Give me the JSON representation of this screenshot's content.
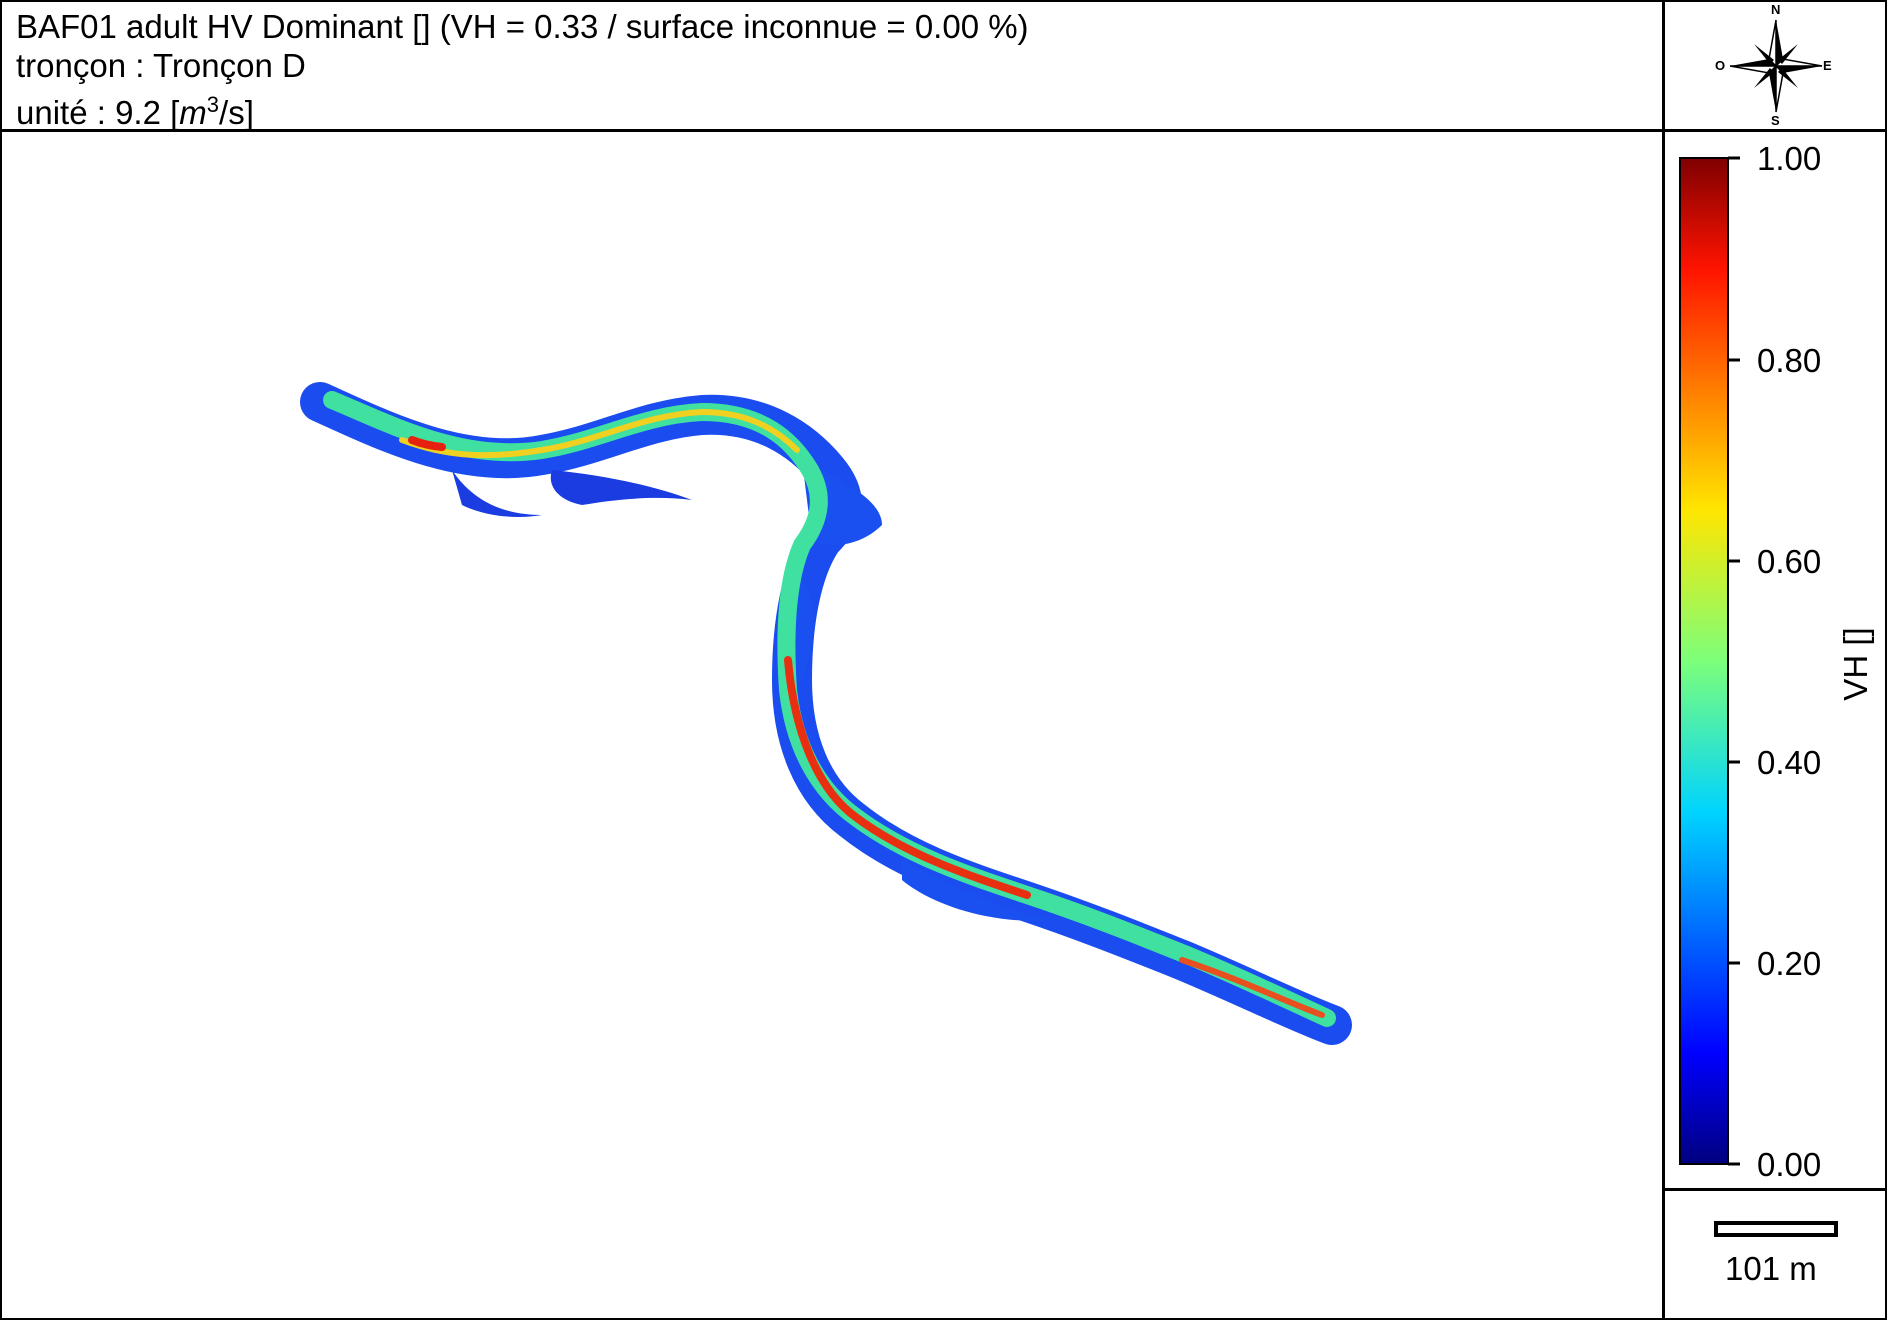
{
  "header": {
    "title_line1": "BAF01 adult HV Dominant []  (VH = 0.33 / surface inconnue = 0.00 %)",
    "title_line2": "tronçon : Tronçon D",
    "title_line3_prefix": "unité : 9.2 [",
    "title_line3_unit": "m",
    "title_line3_sup": "3",
    "title_line3_suffix": "/s]"
  },
  "compass": {
    "north": "N",
    "south": "S",
    "east": "E",
    "west": "O"
  },
  "colorbar": {
    "label": "VH []",
    "min": 0.0,
    "max": 1.0,
    "ticks": [
      "0.00",
      "0.20",
      "0.40",
      "0.60",
      "0.80",
      "1.00"
    ],
    "colormap": "jet"
  },
  "scale_bar": {
    "label": "101 m"
  },
  "map": {
    "type": "river-habitat-map",
    "variable": "VH",
    "description_colors": {
      "high": "#d92010",
      "mid": "#f0e020",
      "low": "#0020d0"
    }
  }
}
